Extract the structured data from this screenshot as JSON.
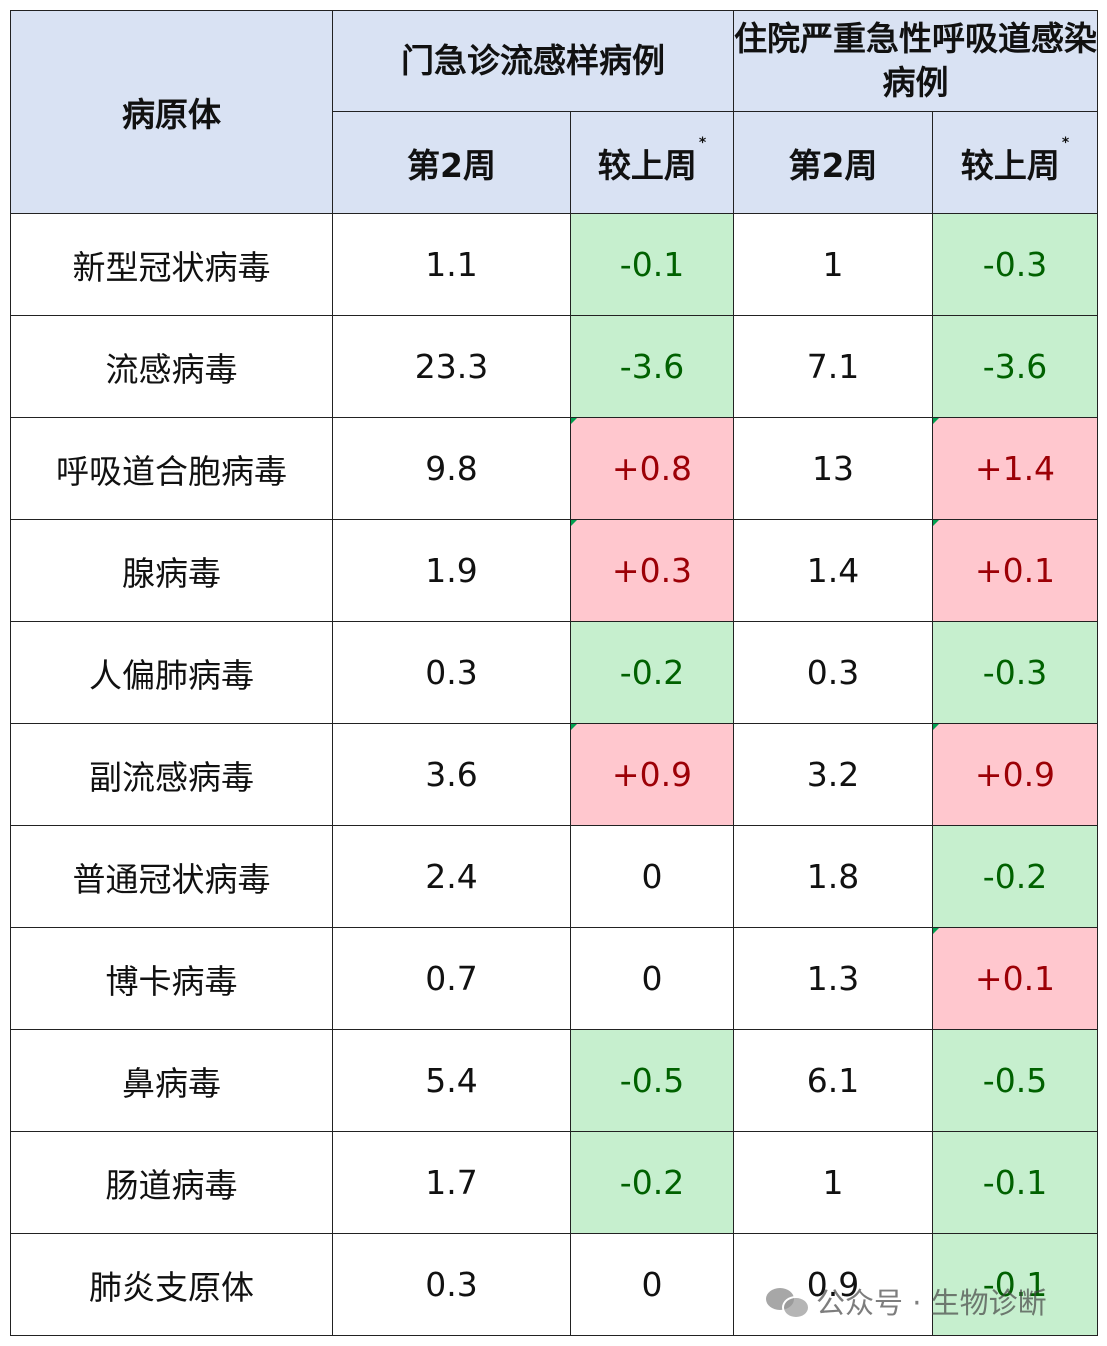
{
  "header": {
    "pathogen": "病原体",
    "group_outpatient": "门急诊流感样病例",
    "group_inpatient": "住院严重急性呼吸道感染病例",
    "week": "第2周",
    "change": "较上周",
    "star": "*"
  },
  "rows": [
    {
      "name": "新型冠状病毒",
      "op_week": "1.1",
      "op_change": "-0.1",
      "op_dir": "down",
      "ip_week": "1",
      "ip_change": "-0.3",
      "ip_dir": "down"
    },
    {
      "name": "流感病毒",
      "op_week": "23.3",
      "op_change": "-3.6",
      "op_dir": "down",
      "ip_week": "7.1",
      "ip_change": "-3.6",
      "ip_dir": "down"
    },
    {
      "name": "呼吸道合胞病毒",
      "op_week": "9.8",
      "op_change": "+0.8",
      "op_dir": "up",
      "ip_week": "13",
      "ip_change": "+1.4",
      "ip_dir": "up"
    },
    {
      "name": "腺病毒",
      "op_week": "1.9",
      "op_change": "+0.3",
      "op_dir": "up",
      "ip_week": "1.4",
      "ip_change": "+0.1",
      "ip_dir": "up"
    },
    {
      "name": "人偏肺病毒",
      "op_week": "0.3",
      "op_change": "-0.2",
      "op_dir": "down",
      "ip_week": "0.3",
      "ip_change": "-0.3",
      "ip_dir": "down"
    },
    {
      "name": "副流感病毒",
      "op_week": "3.6",
      "op_change": "+0.9",
      "op_dir": "up",
      "ip_week": "3.2",
      "ip_change": "+0.9",
      "ip_dir": "up"
    },
    {
      "name": "普通冠状病毒",
      "op_week": "2.4",
      "op_change": "0",
      "op_dir": "none",
      "ip_week": "1.8",
      "ip_change": "-0.2",
      "ip_dir": "down"
    },
    {
      "name": "博卡病毒",
      "op_week": "0.7",
      "op_change": "0",
      "op_dir": "none",
      "ip_week": "1.3",
      "ip_change": "+0.1",
      "ip_dir": "up"
    },
    {
      "name": "鼻病毒",
      "op_week": "5.4",
      "op_change": "-0.5",
      "op_dir": "down",
      "ip_week": "6.1",
      "ip_change": "-0.5",
      "ip_dir": "down"
    },
    {
      "name": "肠道病毒",
      "op_week": "1.7",
      "op_change": "-0.2",
      "op_dir": "down",
      "ip_week": "1",
      "ip_change": "-0.1",
      "ip_dir": "down"
    },
    {
      "name": "肺炎支原体",
      "op_week": "0.3",
      "op_change": "0",
      "op_dir": "none",
      "ip_week": "0.9",
      "ip_change": "-0.1",
      "ip_dir": "down"
    }
  ],
  "colors": {
    "header_bg": "#d9e2f3",
    "decrease_bg": "#c6efce",
    "decrease_text": "#006100",
    "increase_bg": "#ffc7ce",
    "increase_text": "#9c0006"
  },
  "watermark": {
    "icon": "wechat-icon",
    "text": "公众号 · 生物诊断"
  }
}
